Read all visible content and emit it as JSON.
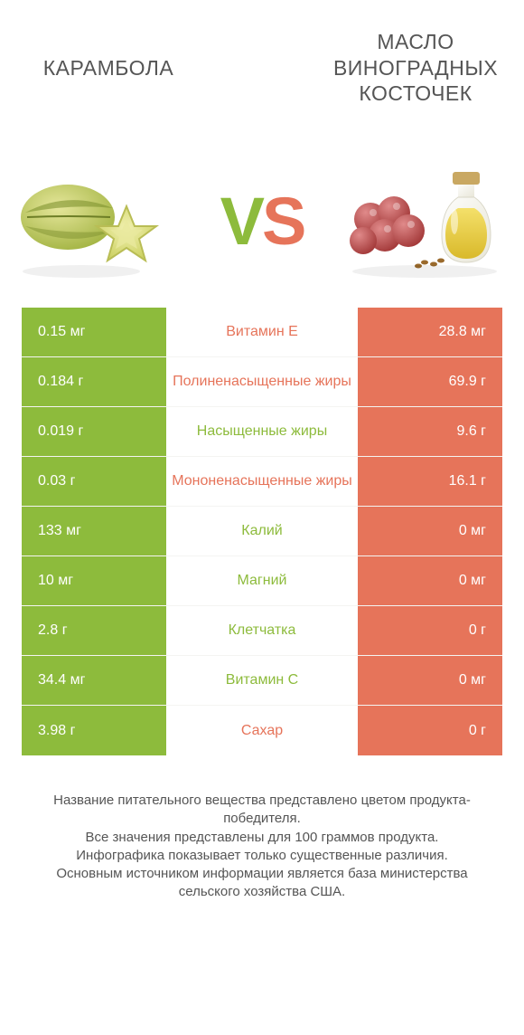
{
  "colors": {
    "green": "#8dbb3c",
    "orange": "#e6745a",
    "row_border": "#f4f4f2",
    "header_left_text": "#555555",
    "header_left_fontsize": 23,
    "header_right_text": "#555555",
    "header_right_fontsize": 23,
    "vs_v": "#8dbb3c",
    "vs_s": "#e6745a",
    "footer_text": "#555555",
    "background": "#ffffff"
  },
  "header": {
    "left": "КАРАМБОЛА",
    "right": "МАСЛО\nВИНОГРАДНЫХ\nКОСТОЧЕК"
  },
  "vs": {
    "v": "V",
    "s": "S"
  },
  "table": {
    "rows": [
      {
        "left": "0.15 мг",
        "mid": "Витамин E",
        "right": "28.8 мг",
        "winner": "right"
      },
      {
        "left": "0.184 г",
        "mid": "Полиненасыщенные жиры",
        "right": "69.9 г",
        "winner": "right"
      },
      {
        "left": "0.019 г",
        "mid": "Насыщенные жиры",
        "right": "9.6 г",
        "winner": "left"
      },
      {
        "left": "0.03 г",
        "mid": "Мононенасыщенные жиры",
        "right": "16.1 г",
        "winner": "right"
      },
      {
        "left": "133 мг",
        "mid": "Калий",
        "right": "0 мг",
        "winner": "left"
      },
      {
        "left": "10 мг",
        "mid": "Магний",
        "right": "0 мг",
        "winner": "left"
      },
      {
        "left": "2.8 г",
        "mid": "Клетчатка",
        "right": "0 г",
        "winner": "left"
      },
      {
        "left": "34.4 мг",
        "mid": "Витамин C",
        "right": "0 мг",
        "winner": "left"
      },
      {
        "left": "3.98 г",
        "mid": "Сахар",
        "right": "0 г",
        "winner": "right"
      }
    ]
  },
  "footer": {
    "lines": [
      "Название питательного вещества представлено цветом продукта-победителя.",
      "Все значения представлены для 100 граммов продукта.",
      "Инфографика показывает только существенные различия.",
      "Основным источником информации является база министерства сельского хозяйства США."
    ]
  }
}
